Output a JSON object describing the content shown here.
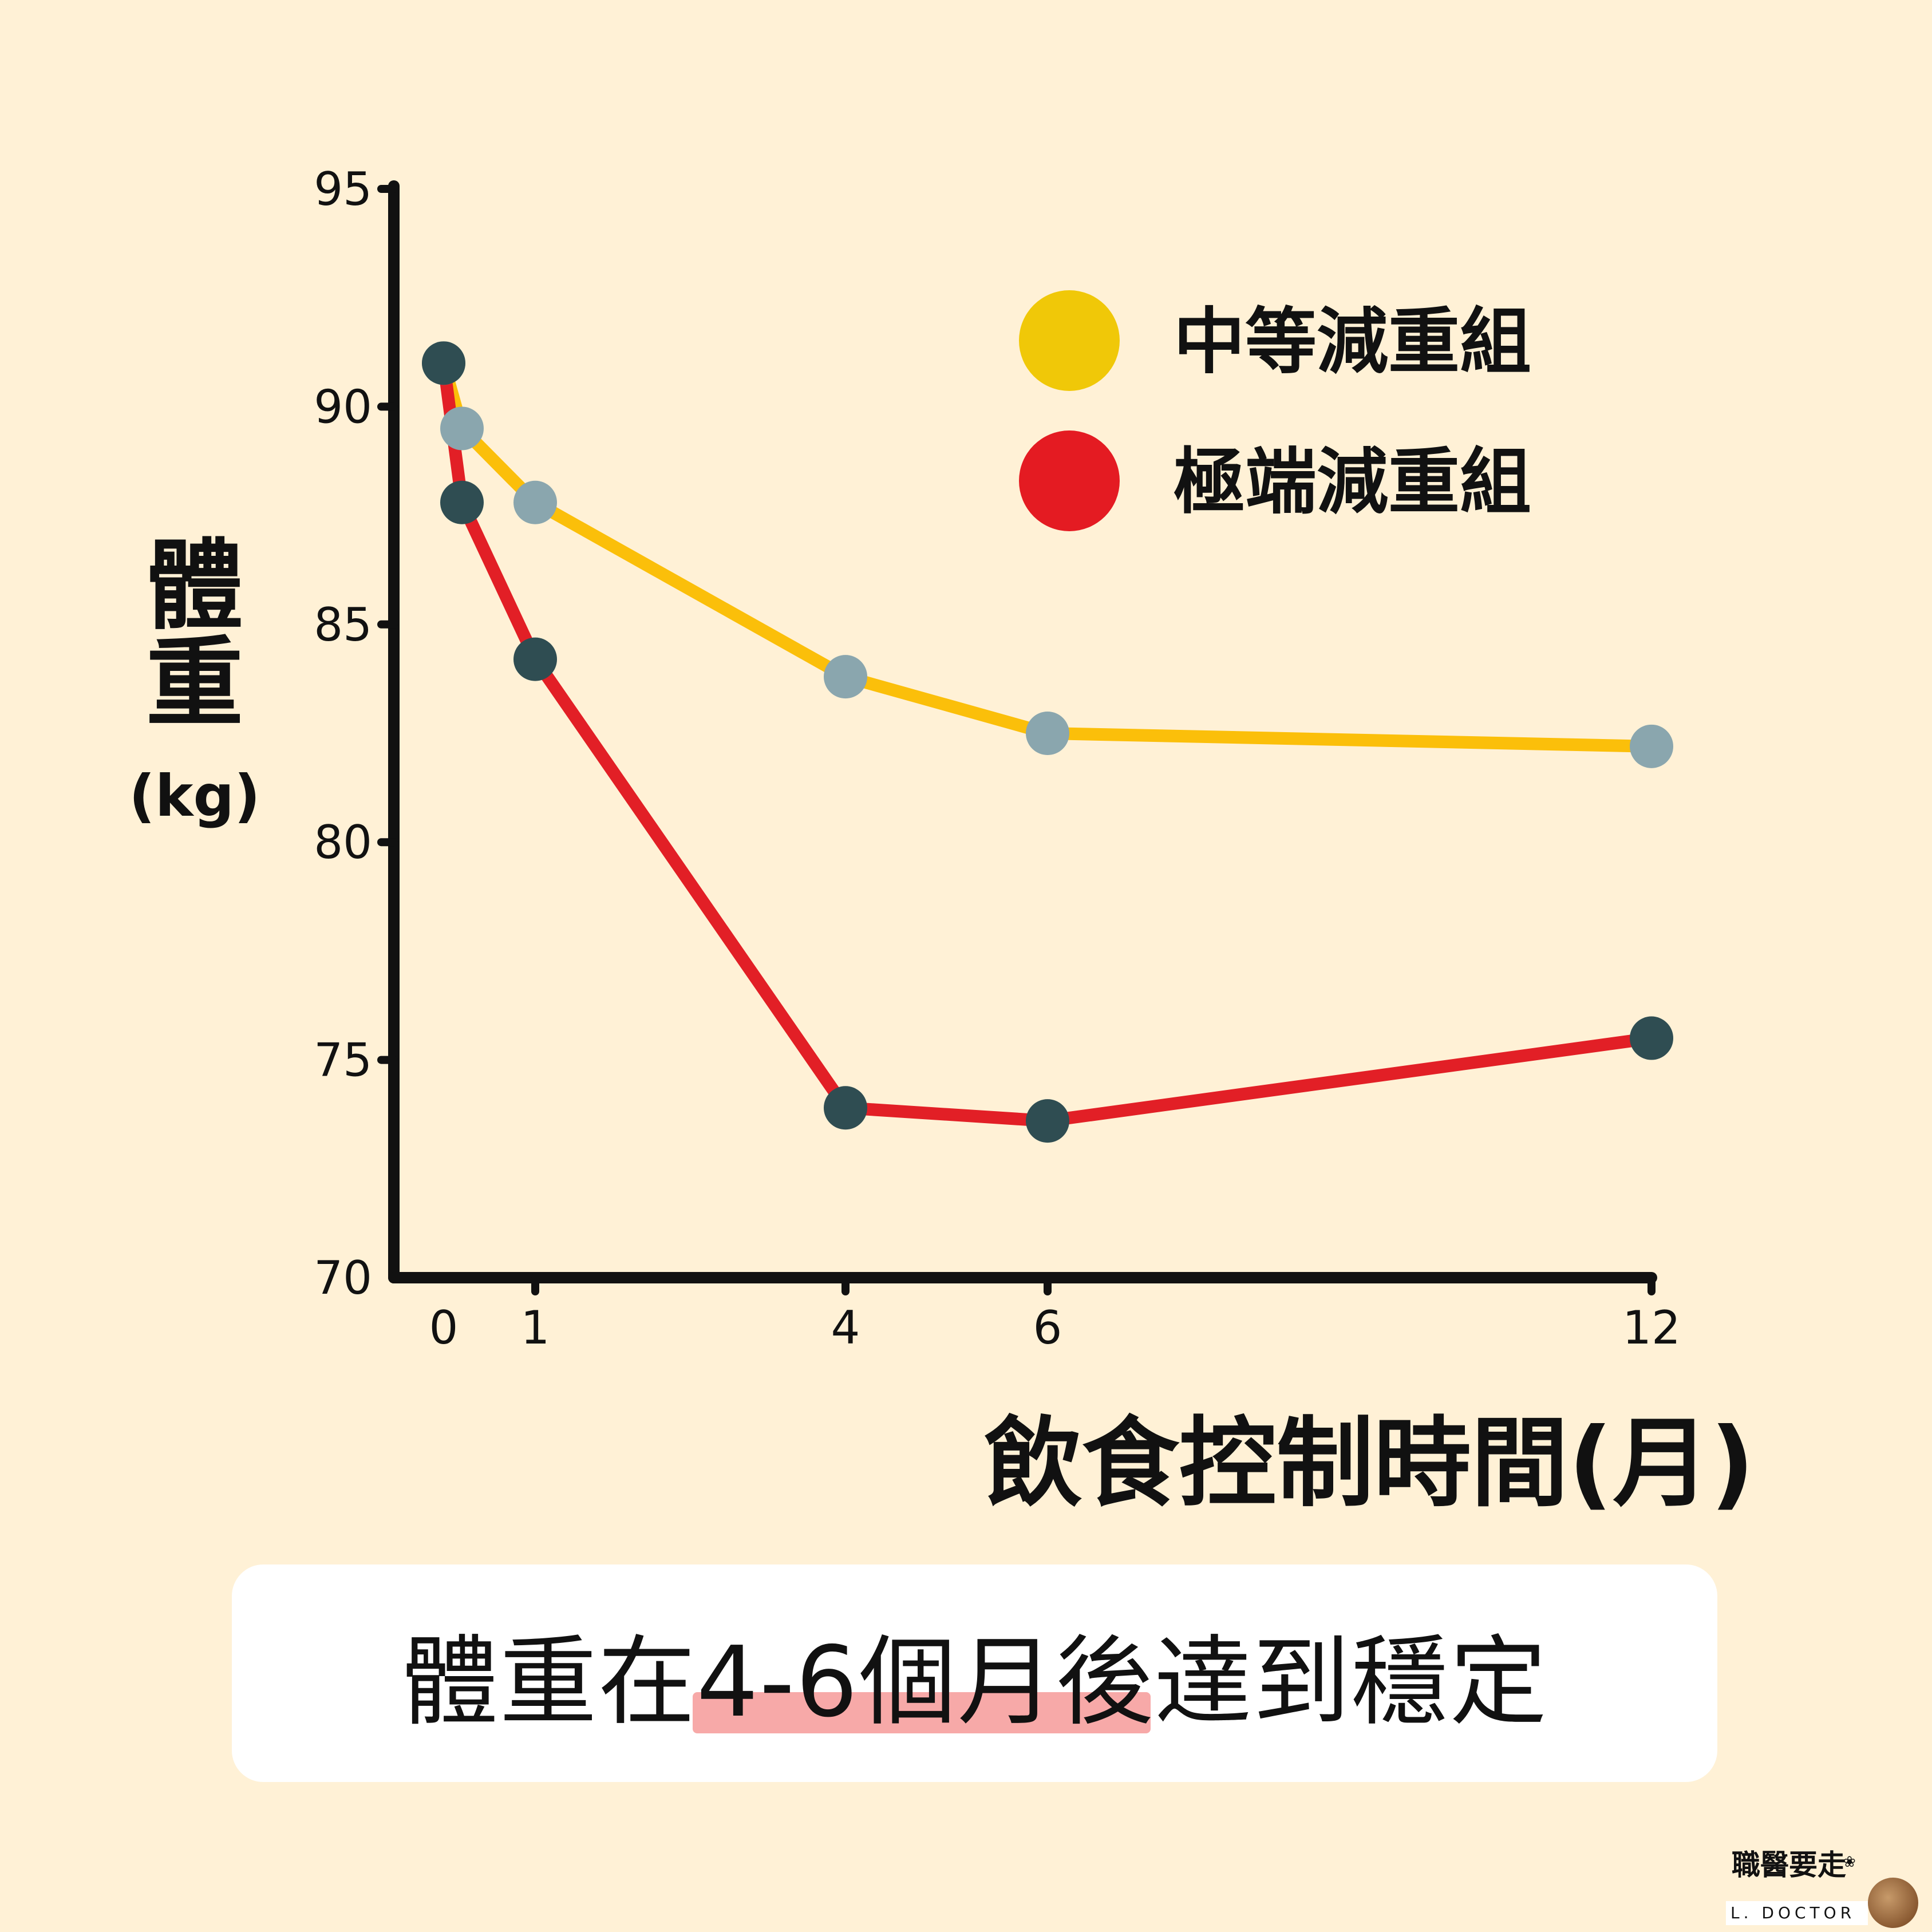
{
  "chart_data": {
    "type": "line",
    "xlabel": "飲食控制時間(月)",
    "ylabel": "體重",
    "ylabel_unit": "(kg)",
    "y_ticks": [
      70,
      75,
      80,
      85,
      90,
      95
    ],
    "x_ticks": [
      0,
      1,
      4,
      6,
      12
    ],
    "ylim": [
      70,
      95
    ],
    "xlim": [
      0,
      12
    ],
    "grid": false,
    "legend_position": "top-right",
    "series": [
      {
        "name": "中等減重組",
        "line_color": "#fbbf0a",
        "legend_color": "#f0c808",
        "marker_color": "#8aa6ae",
        "x": [
          0,
          0.2,
          1,
          4,
          6,
          12
        ],
        "y": [
          91,
          89.5,
          87.8,
          83.8,
          82.5,
          82.2
        ]
      },
      {
        "name": "極端減重組",
        "line_color": "#e21f26",
        "legend_color": "#e41b22",
        "marker_color": "#2f4d52",
        "x": [
          0,
          0.2,
          1,
          4,
          6,
          12
        ],
        "y": [
          91,
          87.8,
          84.2,
          73.9,
          73.6,
          75.5
        ]
      }
    ]
  },
  "caption": {
    "text": "體重在4-6個月後達到穩定"
  },
  "logo": {
    "chinese": "職醫要走",
    "english": "L. DOCTOR"
  }
}
